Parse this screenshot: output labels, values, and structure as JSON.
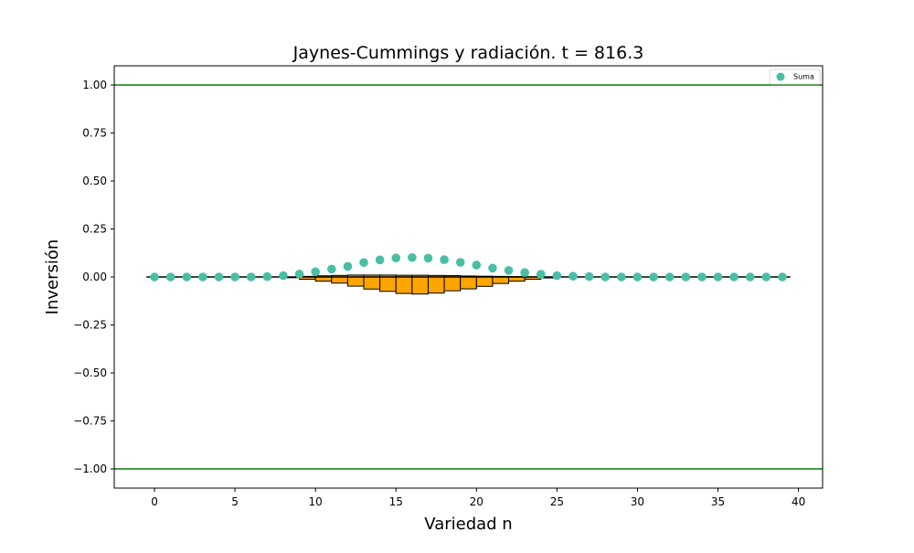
{
  "chart_data": {
    "type": "bar",
    "title": "Jaynes-Cummings y radiación. t = 816.3",
    "xlabel": "Variedad n",
    "ylabel": "Inversión",
    "xlim": [
      -2.5,
      41.5
    ],
    "ylim": [
      -1.1,
      1.1
    ],
    "xticks": [
      0,
      5,
      10,
      15,
      20,
      25,
      30,
      35,
      40
    ],
    "yticks": [
      1.0,
      0.75,
      0.5,
      0.25,
      0.0,
      -0.25,
      -0.5,
      -0.75,
      -1.0
    ],
    "xtick_labels": [
      "0",
      "5",
      "10",
      "15",
      "20",
      "25",
      "30",
      "35",
      "40"
    ],
    "ytick_labels": [
      "1.00",
      "0.75",
      "0.50",
      "0.25",
      "0.00",
      "−0.25",
      "−0.50",
      "−0.75",
      "−1.00"
    ],
    "grid": false,
    "legend": {
      "position": "top-right",
      "entries": [
        "Suma"
      ]
    },
    "colors": {
      "bars": "#ffa500",
      "bar_edge": "#000000",
      "scatter": "#48bfa5",
      "hlines": "#008000",
      "zero_line": "#000000"
    },
    "reference_lines": [
      1.0,
      -1.0
    ],
    "zero_line": {
      "y": 0.0,
      "x_range": [
        -0.5,
        39.5
      ]
    },
    "bars": [
      {
        "x": 8.5,
        "width": 1,
        "bottom": 0.0,
        "top": -0.004
      },
      {
        "x": 9.5,
        "width": 1,
        "bottom": 0.003,
        "top": -0.012
      },
      {
        "x": 10.5,
        "width": 1,
        "bottom": 0.006,
        "top": -0.022
      },
      {
        "x": 11.5,
        "width": 1,
        "bottom": 0.008,
        "top": -0.032
      },
      {
        "x": 12.5,
        "width": 1,
        "bottom": 0.01,
        "top": -0.048
      },
      {
        "x": 13.5,
        "width": 1,
        "bottom": 0.01,
        "top": -0.063
      },
      {
        "x": 14.5,
        "width": 1,
        "bottom": 0.01,
        "top": -0.075
      },
      {
        "x": 15.5,
        "width": 1,
        "bottom": 0.009,
        "top": -0.086
      },
      {
        "x": 16.5,
        "width": 1,
        "bottom": 0.009,
        "top": -0.089
      },
      {
        "x": 17.5,
        "width": 1,
        "bottom": 0.008,
        "top": -0.084
      },
      {
        "x": 18.5,
        "width": 1,
        "bottom": 0.007,
        "top": -0.072
      },
      {
        "x": 19.5,
        "width": 1,
        "bottom": 0.005,
        "top": -0.062
      },
      {
        "x": 20.5,
        "width": 1,
        "bottom": 0.004,
        "top": -0.049
      },
      {
        "x": 21.5,
        "width": 1,
        "bottom": 0.003,
        "top": -0.034
      },
      {
        "x": 22.5,
        "width": 1,
        "bottom": 0.002,
        "top": -0.022
      },
      {
        "x": 23.5,
        "width": 1,
        "bottom": 0.001,
        "top": -0.012
      },
      {
        "x": 24.5,
        "width": 1,
        "bottom": 0.0,
        "top": -0.005
      }
    ],
    "series": [
      {
        "name": "Suma",
        "type": "scatter",
        "x": [
          0,
          1,
          2,
          3,
          4,
          5,
          6,
          7,
          8,
          9,
          10,
          11,
          12,
          13,
          14,
          15,
          16,
          17,
          18,
          19,
          20,
          21,
          22,
          23,
          24,
          25,
          26,
          27,
          28,
          29,
          30,
          31,
          32,
          33,
          34,
          35,
          36,
          37,
          38,
          39
        ],
        "y": [
          0.0,
          0.0,
          0.0,
          0.0,
          0.0,
          0.0,
          0.0,
          0.002,
          0.007,
          0.015,
          0.027,
          0.041,
          0.055,
          0.075,
          0.089,
          0.099,
          0.101,
          0.098,
          0.09,
          0.076,
          0.062,
          0.046,
          0.034,
          0.023,
          0.014,
          0.007,
          0.004,
          0.002,
          0.0,
          0.0,
          0.0,
          0.0,
          0.0,
          0.0,
          0.0,
          0.0,
          0.0,
          0.0,
          0.0,
          0.0
        ]
      }
    ]
  }
}
